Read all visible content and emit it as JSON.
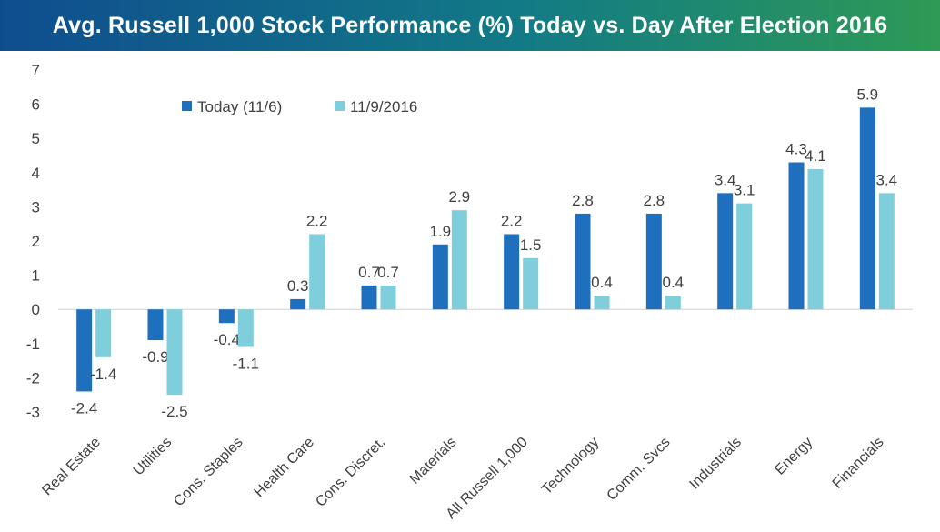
{
  "chart_data": {
    "type": "bar",
    "title": "Avg. Russell 1,000 Stock Performance (%) Today vs. Day After Election 2016",
    "categories": [
      "Real Estate",
      "Utilities",
      "Cons. Staples",
      "Health Care",
      "Cons. Discret.",
      "Materials",
      "All Russell 1,000",
      "Technology",
      "Comm. Svcs",
      "Industrials",
      "Energy",
      "Financials"
    ],
    "series": [
      {
        "name": "Today (11/6)",
        "color": "#1f6fbf",
        "values": [
          -2.4,
          -0.9,
          -0.4,
          0.3,
          0.7,
          1.9,
          2.2,
          2.8,
          2.8,
          3.4,
          4.3,
          5.9
        ]
      },
      {
        "name": "11/9/2016",
        "color": "#7ecfdb",
        "values": [
          -1.4,
          -2.5,
          -1.1,
          2.2,
          0.7,
          2.9,
          1.5,
          0.4,
          0.4,
          3.1,
          4.1,
          3.4
        ]
      }
    ],
    "data_labels": [
      [
        "-2.4",
        "-0.9",
        "-0.4",
        "0.3",
        "0.7",
        "1.9",
        "2.2",
        "2.8",
        "2.8",
        "3.4",
        "4.3",
        "5.9"
      ],
      [
        "-1.4",
        "-2.5",
        "-1.1",
        "2.2",
        "0.7",
        "2.9",
        "1.5",
        "0.4",
        "0.4",
        "3.1",
        "4.1",
        "3.4"
      ]
    ],
    "ylim": [
      -3,
      7
    ],
    "yticks": [
      "7",
      "6",
      "5",
      "4",
      "3",
      "2",
      "1",
      "0",
      "-1",
      "-2",
      "-3"
    ],
    "legend_position": "top-left",
    "grid": false
  }
}
